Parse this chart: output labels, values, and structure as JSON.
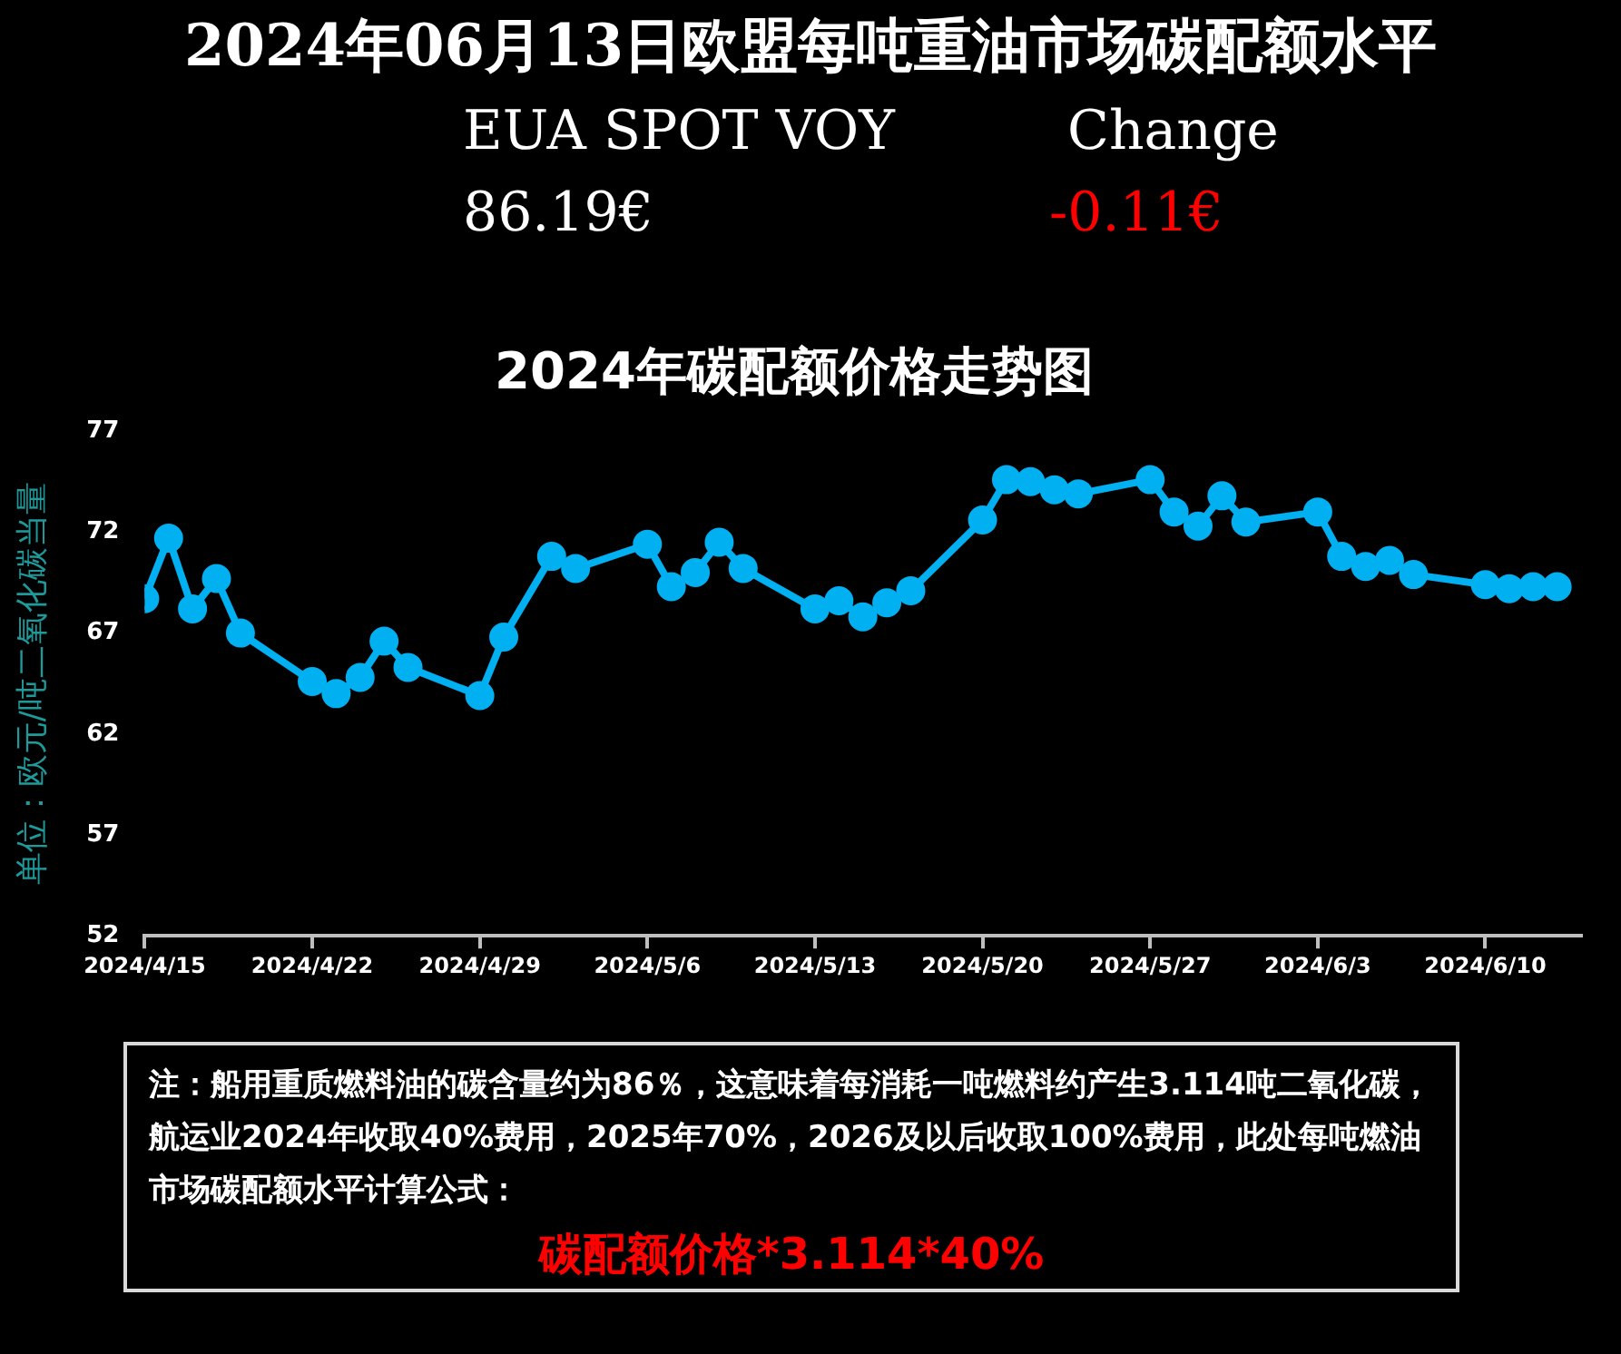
{
  "chart_data": {
    "type": "line",
    "title": "2024年06月13日欧盟每吨重油市场碳配额水平",
    "subtitle": "2024年碳配额价格走势图",
    "ylabel": "单位：欧元/吨二氧化碳当量",
    "annotations": [
      "EUA SPOT VOY",
      "86.19€",
      "Change",
      "-0.11€",
      "注：船用重质燃料油的碳含量约为86％，这意味着每消耗一吨燃料约产生3.114吨二氧化碳，航运业2024年收取40%费用，2025年70%，2026及以后收取100%费用，此处每吨燃油市场碳配额水平计算公式：",
      "碳配额价格*3.114*40%"
    ],
    "x": [
      "2024-04-15",
      "2024-04-16",
      "2024-04-17",
      "2024-04-18",
      "2024-04-19",
      "2024-04-22",
      "2024-04-23",
      "2024-04-24",
      "2024-04-25",
      "2024-04-26",
      "2024-04-29",
      "2024-04-30",
      "2024-05-02",
      "2024-05-03",
      "2024-05-06",
      "2024-05-07",
      "2024-05-08",
      "2024-05-09",
      "2024-05-10",
      "2024-05-13",
      "2024-05-14",
      "2024-05-15",
      "2024-05-16",
      "2024-05-17",
      "2024-05-20",
      "2024-05-21",
      "2024-05-22",
      "2024-05-23",
      "2024-05-24",
      "2024-05-27",
      "2024-05-28",
      "2024-05-29",
      "2024-05-30",
      "2024-05-31",
      "2024-06-03",
      "2024-06-04",
      "2024-06-05",
      "2024-06-06",
      "2024-06-07",
      "2024-06-10",
      "2024-06-11",
      "2024-06-12",
      "2024-06-13"
    ],
    "series": [
      {
        "color": "#00b0f0",
        "values": [
          68.7,
          71.7,
          68.2,
          69.7,
          67.0,
          64.6,
          64.0,
          64.8,
          66.6,
          65.3,
          63.9,
          66.8,
          70.8,
          70.2,
          71.4,
          69.3,
          70.0,
          71.5,
          70.2,
          68.2,
          68.6,
          67.8,
          68.5,
          69.1,
          72.6,
          74.6,
          74.5,
          74.1,
          73.9,
          74.6,
          73.0,
          72.3,
          73.8,
          72.5,
          73.0,
          70.8,
          70.3,
          70.6,
          69.9,
          69.4,
          69.2,
          69.3,
          69.3
        ]
      }
    ],
    "xlim": [
      "2024-04-15",
      "2024-06-14"
    ],
    "xticks": [
      {
        "value": "2024-04-15",
        "label": "2024/4/15"
      },
      {
        "value": "2024-04-22",
        "label": "2024/4/22"
      },
      {
        "value": "2024-04-29",
        "label": "2024/4/29"
      },
      {
        "value": "2024-05-06",
        "label": "2024/5/6"
      },
      {
        "value": "2024-05-13",
        "label": "2024/5/13"
      },
      {
        "value": "2024-05-20",
        "label": "2024/5/20"
      },
      {
        "value": "2024-05-27",
        "label": "2024/5/27"
      },
      {
        "value": "2024-06-03",
        "label": "2024/6/3"
      },
      {
        "value": "2024-06-10",
        "label": "2024/6/10"
      }
    ],
    "ylim": [
      52,
      77
    ],
    "yticks": [
      52,
      57,
      62,
      67,
      72,
      77
    ],
    "grid": false,
    "legend": false,
    "marker": "circle",
    "line_style": "solid"
  }
}
